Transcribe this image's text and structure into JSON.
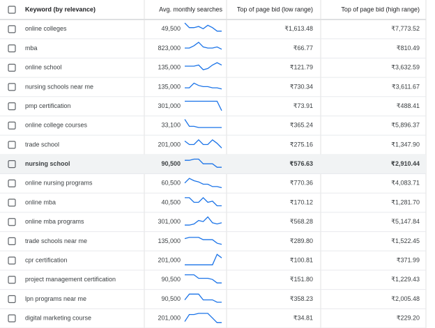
{
  "header": {
    "keyword": "Keyword (by relevance)",
    "searches": "Avg. monthly searches",
    "low": "Top of page bid (low range)",
    "high": "Top of page bid (high range)"
  },
  "highlighted_row": 7,
  "trend_color": "#1a73e8",
  "rows": [
    {
      "keyword": "online colleges",
      "searches": "49,500",
      "low": "₹1,613.48",
      "high": "₹7,773.52",
      "trend": [
        10,
        6,
        6,
        7,
        5,
        8,
        6,
        3,
        3
      ]
    },
    {
      "keyword": "mba",
      "searches": "823,000",
      "low": "₹66.77",
      "high": "₹810.49",
      "trend": [
        5,
        5,
        7,
        10,
        6,
        5,
        5,
        6,
        4
      ]
    },
    {
      "keyword": "online school",
      "searches": "135,000",
      "low": "₹121.79",
      "high": "₹3,632.59",
      "trend": [
        6,
        6,
        6,
        7,
        3,
        4,
        7,
        9,
        7
      ]
    },
    {
      "keyword": "nursing schools near me",
      "searches": "135,000",
      "low": "₹730.34",
      "high": "₹3,611.67",
      "trend": [
        4,
        4,
        8,
        6,
        5,
        5,
        4,
        4,
        3
      ]
    },
    {
      "keyword": "pmp certification",
      "searches": "301,000",
      "low": "₹73.91",
      "high": "₹488.41",
      "trend": [
        9,
        9,
        9,
        9,
        9,
        9,
        9,
        9,
        1
      ]
    },
    {
      "keyword": "online college courses",
      "searches": "33,100",
      "low": "₹365.24",
      "high": "₹5,896.37",
      "trend": [
        10,
        4,
        4,
        3,
        3,
        3,
        3,
        3,
        3
      ]
    },
    {
      "keyword": "trade school",
      "searches": "201,000",
      "low": "₹275.16",
      "high": "₹1,347.90",
      "trend": [
        8,
        5,
        5,
        9,
        5,
        5,
        9,
        6,
        2
      ]
    },
    {
      "keyword": "nursing school",
      "searches": "90,500",
      "low": "₹576.63",
      "high": "₹2,910.44",
      "trend": [
        8,
        8,
        9,
        9,
        5,
        5,
        5,
        2,
        2
      ]
    },
    {
      "keyword": "online nursing programs",
      "searches": "60,500",
      "low": "₹770.36",
      "high": "₹4,083.71",
      "trend": [
        5,
        9,
        7,
        6,
        4,
        4,
        2,
        2,
        1
      ]
    },
    {
      "keyword": "online mba",
      "searches": "40,500",
      "low": "₹170.12",
      "high": "₹1,281.70",
      "trend": [
        9,
        9,
        5,
        5,
        9,
        5,
        6,
        2,
        2
      ]
    },
    {
      "keyword": "online mba programs",
      "searches": "301,000",
      "low": "₹568.28",
      "high": "₹5,147.84",
      "trend": [
        2,
        2,
        3,
        6,
        5,
        9,
        4,
        3,
        4
      ]
    },
    {
      "keyword": "trade schools near me",
      "searches": "135,000",
      "low": "₹289.80",
      "high": "₹1,522.45",
      "trend": [
        7,
        8,
        8,
        8,
        6,
        6,
        6,
        3,
        2
      ]
    },
    {
      "keyword": "cpr certification",
      "searches": "201,000",
      "low": "₹100.81",
      "high": "₹371.99",
      "trend": [
        1,
        1,
        1,
        1,
        1,
        1,
        1,
        10,
        7
      ]
    },
    {
      "keyword": "project management certification",
      "searches": "90,500",
      "low": "₹151.80",
      "high": "₹1,229.43",
      "trend": [
        9,
        9,
        9,
        6,
        6,
        6,
        5,
        2,
        2
      ]
    },
    {
      "keyword": "lpn programs near me",
      "searches": "90,500",
      "low": "₹358.23",
      "high": "₹2,005.48",
      "trend": [
        4,
        9,
        9,
        9,
        4,
        4,
        4,
        2,
        2
      ]
    },
    {
      "keyword": "digital marketing course",
      "searches": "201,000",
      "low": "₹34.81",
      "high": "₹229.20",
      "trend": [
        2,
        8,
        8,
        9,
        9,
        9,
        5,
        1,
        1
      ]
    }
  ]
}
